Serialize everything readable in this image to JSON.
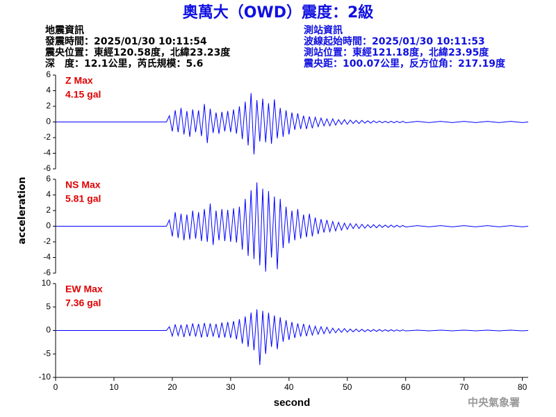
{
  "header": {
    "title": "奧萬大（OWD）震度：2級",
    "left": [
      "地震資訊",
      "發震時間：2025/01/30 10:11:54",
      "震央位置：東經120.58度，北緯23.23度",
      "深　度：12.1公里，芮氏規模：5.6"
    ],
    "right": [
      "測站資訊",
      "波線起始時間：2025/01/30 10:11:53",
      "測站位置：東經121.18度，北緯23.95度",
      "震央距：100.07公里，反方位角：217.19度"
    ]
  },
  "ylabel": "acceleration",
  "watermark": "中央氣象署",
  "chart_data": [
    {
      "type": "line",
      "label": "Z Max",
      "max_label": "4.15 gal",
      "label_color": "#e00000",
      "color": "#0000ff",
      "xlim": [
        0,
        81
      ],
      "ylim": [
        -6,
        6
      ],
      "yticks": [
        -6,
        -4,
        -2,
        0,
        2,
        4,
        6
      ],
      "x": [
        0,
        19,
        19.5,
        20,
        20.5,
        21,
        21.5,
        22,
        22.5,
        23,
        23.5,
        24,
        24.5,
        25,
        25.5,
        26,
        26.5,
        27,
        27.5,
        28,
        28.5,
        29,
        29.5,
        30,
        30.5,
        31,
        31.5,
        32,
        32.5,
        33,
        33.5,
        34,
        34.5,
        35,
        35.5,
        36,
        36.5,
        37,
        37.5,
        38,
        38.5,
        39,
        39.5,
        40,
        40.5,
        41,
        41.5,
        42,
        42.5,
        43,
        43.5,
        44,
        44.5,
        45,
        45.5,
        46,
        46.5,
        47,
        47.5,
        48,
        48.5,
        49,
        49.5,
        50,
        50.5,
        51,
        51.5,
        52,
        52.5,
        53,
        53.5,
        54,
        54.5,
        55,
        55.5,
        56,
        56.5,
        57,
        57.5,
        58,
        58.5,
        59,
        59.5,
        60,
        62,
        64,
        66,
        68,
        70,
        72,
        74,
        76,
        78,
        80,
        81
      ],
      "values": [
        0,
        0,
        0.8,
        -1.2,
        1.5,
        -1.3,
        1.8,
        -1.6,
        1.4,
        -1.9,
        1.6,
        -1.3,
        1.5,
        -1.8,
        2.3,
        -2.7,
        1.7,
        -1.4,
        1.2,
        -1.5,
        1.3,
        -1.2,
        1.4,
        -1.3,
        1.6,
        -1.5,
        2.0,
        -2.2,
        2.6,
        -3.0,
        3.7,
        -4.15,
        2.8,
        -2.5,
        3.0,
        -2.6,
        2.4,
        -2.8,
        2.9,
        -2.1,
        1.8,
        -1.9,
        1.5,
        -1.6,
        1.2,
        -1.0,
        1.1,
        -0.9,
        0.8,
        -0.9,
        0.7,
        -0.8,
        0.6,
        -0.6,
        0.5,
        -0.5,
        0.4,
        -0.5,
        0.4,
        -0.4,
        0.3,
        -0.3,
        0.3,
        -0.3,
        0.25,
        -0.2,
        0.2,
        -0.2,
        0.2,
        -0.15,
        0.15,
        -0.15,
        0.15,
        -0.1,
        0.12,
        -0.1,
        0.1,
        -0.1,
        0.1,
        -0.1,
        0.1,
        -0.1,
        0.1,
        -0.1,
        0.08,
        -0.08,
        0.08,
        -0.08,
        0.08,
        -0.08,
        0.08,
        -0.08,
        0.08,
        -0.08,
        0
      ]
    },
    {
      "type": "line",
      "label": "NS Max",
      "max_label": "5.81 gal",
      "label_color": "#e00000",
      "color": "#0000ff",
      "xlim": [
        0,
        81
      ],
      "ylim": [
        -6,
        6
      ],
      "yticks": [
        -6,
        -4,
        -2,
        0,
        2,
        4,
        6
      ],
      "x": [
        0,
        19,
        19.5,
        20,
        20.5,
        21,
        21.5,
        22,
        22.5,
        23,
        23.5,
        24,
        24.5,
        25,
        25.5,
        26,
        26.5,
        27,
        27.5,
        28,
        28.5,
        29,
        29.5,
        30,
        30.5,
        31,
        31.5,
        32,
        32.5,
        33,
        33.5,
        34,
        34.5,
        35,
        35.5,
        36,
        36.5,
        37,
        37.5,
        38,
        38.5,
        39,
        39.5,
        40,
        40.5,
        41,
        41.5,
        42,
        42.5,
        43,
        43.5,
        44,
        44.5,
        45,
        45.5,
        46,
        46.5,
        47,
        47.5,
        48,
        48.5,
        49,
        49.5,
        50,
        50.5,
        51,
        51.5,
        52,
        52.5,
        53,
        53.5,
        54,
        54.5,
        55,
        55.5,
        56,
        56.5,
        57,
        57.5,
        58,
        58.5,
        59,
        59.5,
        60,
        62,
        64,
        66,
        68,
        70,
        72,
        74,
        76,
        78,
        80,
        81
      ],
      "values": [
        0,
        0,
        0.8,
        -1.3,
        1.8,
        -1.5,
        1.6,
        -1.8,
        1.5,
        -1.7,
        2.0,
        -1.6,
        1.8,
        -1.9,
        2.2,
        -2.0,
        2.9,
        -2.4,
        2.0,
        -1.8,
        2.2,
        -1.9,
        2.1,
        -2.0,
        2.3,
        -2.1,
        2.5,
        -3.0,
        3.5,
        -3.8,
        4.6,
        -4.2,
        5.6,
        -5.0,
        4.8,
        -5.81,
        4.5,
        -4.0,
        3.8,
        -5.5,
        3.5,
        -2.8,
        2.5,
        -2.2,
        2.0,
        -1.8,
        2.2,
        -1.6,
        1.5,
        -1.4,
        1.6,
        -1.3,
        1.1,
        -1.0,
        0.9,
        -0.8,
        0.8,
        -0.7,
        0.6,
        -0.6,
        0.5,
        -0.5,
        0.4,
        -0.4,
        0.35,
        -0.3,
        0.3,
        -0.3,
        0.25,
        -0.25,
        0.2,
        -0.2,
        0.2,
        -0.2,
        0.18,
        -0.15,
        0.15,
        -0.15,
        0.15,
        -0.12,
        0.12,
        -0.12,
        0.1,
        -0.1,
        0.08,
        -0.08,
        0.08,
        -0.08,
        0.08,
        -0.08,
        0.08,
        -0.08,
        0.08,
        -0.08,
        0
      ]
    },
    {
      "type": "line",
      "label": "EW Max",
      "max_label": "7.36 gal",
      "label_color": "#e00000",
      "color": "#0000ff",
      "xlim": [
        0,
        81
      ],
      "ylim": [
        -10,
        10
      ],
      "yticks": [
        -10,
        -5,
        0,
        5,
        10
      ],
      "xticks": [
        0,
        10,
        20,
        30,
        40,
        50,
        60,
        70,
        80
      ],
      "xlabel": "second",
      "x": [
        0,
        19,
        19.5,
        20,
        20.5,
        21,
        21.5,
        22,
        22.5,
        23,
        23.5,
        24,
        24.5,
        25,
        25.5,
        26,
        26.5,
        27,
        27.5,
        28,
        28.5,
        29,
        29.5,
        30,
        30.5,
        31,
        31.5,
        32,
        32.5,
        33,
        33.5,
        34,
        34.5,
        35,
        35.5,
        36,
        36.5,
        37,
        37.5,
        38,
        38.5,
        39,
        39.5,
        40,
        40.5,
        41,
        41.5,
        42,
        42.5,
        43,
        43.5,
        44,
        44.5,
        45,
        45.5,
        46,
        46.5,
        47,
        47.5,
        48,
        48.5,
        49,
        49.5,
        50,
        50.5,
        51,
        51.5,
        52,
        52.5,
        53,
        53.5,
        54,
        54.5,
        55,
        55.5,
        56,
        56.5,
        57,
        57.5,
        58,
        58.5,
        59,
        59.5,
        60,
        62,
        64,
        66,
        68,
        70,
        72,
        74,
        76,
        78,
        80,
        81
      ],
      "values": [
        0,
        0,
        0.8,
        -1.2,
        1.3,
        -1.1,
        1.2,
        -1.4,
        1.3,
        -1.2,
        1.5,
        -1.3,
        1.4,
        -1.5,
        1.6,
        -1.4,
        1.5,
        -1.3,
        1.4,
        -1.6,
        1.7,
        -1.5,
        1.8,
        -1.6,
        2.0,
        -1.9,
        2.4,
        -2.8,
        3.0,
        -3.5,
        3.8,
        -4.2,
        4.5,
        -7.36,
        4.2,
        -5.0,
        3.8,
        -3.5,
        3.2,
        -4.0,
        2.8,
        -2.4,
        2.2,
        -2.0,
        1.8,
        -1.6,
        1.5,
        -1.3,
        1.4,
        -1.2,
        1.1,
        -1.0,
        0.9,
        -0.8,
        0.8,
        -0.7,
        0.7,
        -0.6,
        0.5,
        -0.5,
        0.4,
        -0.4,
        0.4,
        -0.35,
        0.3,
        -0.3,
        0.3,
        -0.25,
        0.25,
        -0.25,
        0.2,
        -0.2,
        0.2,
        -0.2,
        0.2,
        -0.18,
        0.15,
        -0.15,
        0.15,
        -0.15,
        0.12,
        -0.12,
        0.12,
        -0.1,
        0.08,
        -0.08,
        0.08,
        -0.08,
        0.08,
        -0.08,
        0.08,
        -0.08,
        0.08,
        -0.08,
        0
      ]
    }
  ]
}
